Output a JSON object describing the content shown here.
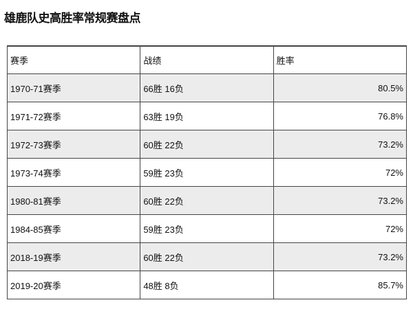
{
  "title": "雄鹿队史高胜率常规赛盘点",
  "headers": [
    "赛季",
    "战绩",
    "胜率"
  ],
  "rows": [
    [
      "1970-71赛季",
      "66胜 16负",
      "80.5%"
    ],
    [
      "1971-72赛季",
      "63胜 19负",
      "76.8%"
    ],
    [
      "1972-73赛季",
      "60胜 22负",
      "73.2%"
    ],
    [
      "1973-74赛季",
      "59胜 23负",
      "72%"
    ],
    [
      "1980-81赛季",
      "60胜 22负",
      "73.2%"
    ],
    [
      "1984-85赛季",
      "59胜 23负",
      "72%"
    ],
    [
      "2018-19赛季",
      "60胜 22负",
      "73.2%"
    ],
    [
      "2019-20赛季",
      "48胜 8负",
      "85.7%"
    ]
  ]
}
